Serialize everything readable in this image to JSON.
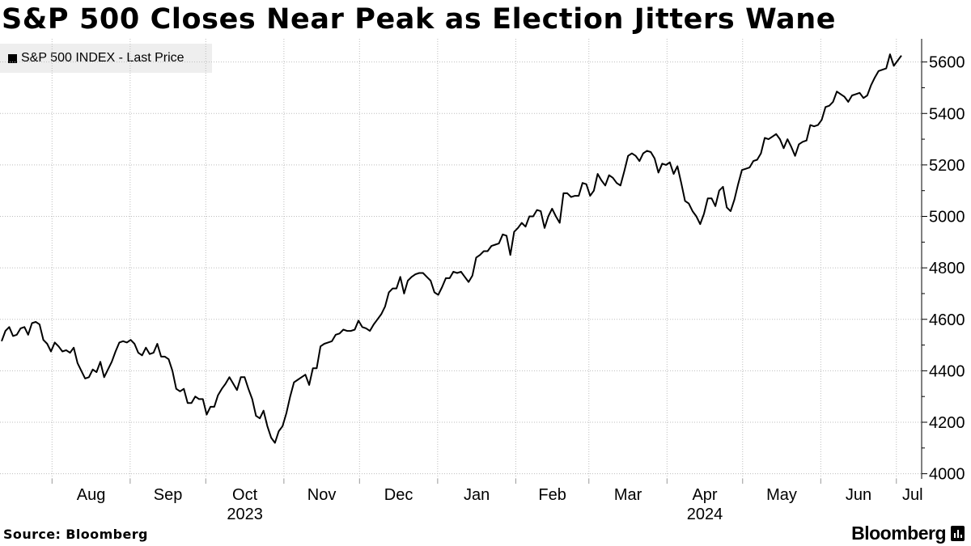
{
  "header": {
    "title": "S&P 500 Closes Near Peak as Election Jitters Wane"
  },
  "footer": {
    "source": "Source: Bloomberg",
    "brand": "Bloomberg"
  },
  "colors": {
    "line": "#000000",
    "grid": "#bdbdbd",
    "legend_bg": "#eeeeee"
  },
  "chart_data": {
    "type": "line",
    "title": "S&P 500 Closes Near Peak as Election Jitters Wane",
    "xlabel": "",
    "ylabel": "",
    "ylim": [
      3980,
      5690
    ],
    "y_ticks": [
      4000,
      4200,
      4400,
      4600,
      4800,
      5000,
      5200,
      5400,
      5600
    ],
    "x_months": [
      "Aug",
      "Sep",
      "Oct",
      "Nov",
      "Dec",
      "Jan",
      "Feb",
      "Mar",
      "Apr",
      "May",
      "Jun",
      "Jul"
    ],
    "x_years": [
      "2023",
      "2024"
    ],
    "grid": true,
    "legend_position": "top-left",
    "series": [
      {
        "name": "S&P 500 INDEX - Last Price",
        "start_date": "2023-07-12",
        "end_date": "2024-07-03",
        "values": [
          4515,
          4555,
          4570,
          4535,
          4540,
          4565,
          4570,
          4540,
          4585,
          4590,
          4580,
          4520,
          4505,
          4475,
          4510,
          4495,
          4475,
          4480,
          4470,
          4490,
          4430,
          4400,
          4370,
          4375,
          4405,
          4395,
          4435,
          4375,
          4405,
          4435,
          4475,
          4510,
          4515,
          4510,
          4520,
          4505,
          4470,
          4460,
          4490,
          4465,
          4470,
          4505,
          4455,
          4455,
          4445,
          4400,
          4330,
          4320,
          4330,
          4275,
          4275,
          4300,
          4290,
          4290,
          4230,
          4260,
          4260,
          4305,
          4330,
          4350,
          4375,
          4350,
          4325,
          4375,
          4375,
          4330,
          4290,
          4225,
          4215,
          4245,
          4185,
          4140,
          4120,
          4165,
          4185,
          4235,
          4300,
          4355,
          4365,
          4375,
          4385,
          4345,
          4410,
          4410,
          4495,
          4505,
          4510,
          4515,
          4540,
          4545,
          4560,
          4555,
          4555,
          4560,
          4595,
          4570,
          4565,
          4555,
          4580,
          4600,
          4620,
          4650,
          4705,
          4720,
          4720,
          4765,
          4700,
          4750,
          4765,
          4775,
          4780,
          4780,
          4765,
          4750,
          4705,
          4695,
          4725,
          4760,
          4760,
          4785,
          4780,
          4785,
          4765,
          4745,
          4770,
          4840,
          4850,
          4865,
          4865,
          4885,
          4890,
          4895,
          4930,
          4925,
          4850,
          4940,
          4955,
          4975,
          4960,
          5000,
          5000,
          5025,
          5020,
          4955,
          5000,
          5030,
          5000,
          4975,
          5090,
          5090,
          5075,
          5080,
          5080,
          5130,
          5125,
          5080,
          5100,
          5165,
          5140,
          5120,
          5160,
          5150,
          5130,
          5120,
          5175,
          5235,
          5245,
          5235,
          5215,
          5245,
          5255,
          5250,
          5225,
          5170,
          5205,
          5200,
          5210,
          5165,
          5195,
          5130,
          5060,
          5050,
          5020,
          5000,
          4970,
          5010,
          5070,
          5070,
          5040,
          5100,
          5115,
          5035,
          5020,
          5065,
          5125,
          5180,
          5185,
          5190,
          5215,
          5220,
          5245,
          5305,
          5300,
          5310,
          5320,
          5300,
          5265,
          5300,
          5270,
          5235,
          5280,
          5290,
          5295,
          5355,
          5350,
          5355,
          5375,
          5425,
          5430,
          5445,
          5485,
          5475,
          5465,
          5445,
          5470,
          5475,
          5480,
          5460,
          5470,
          5510,
          5540,
          5565,
          5570,
          5575,
          5630,
          5585,
          5605,
          5625
        ]
      }
    ]
  }
}
